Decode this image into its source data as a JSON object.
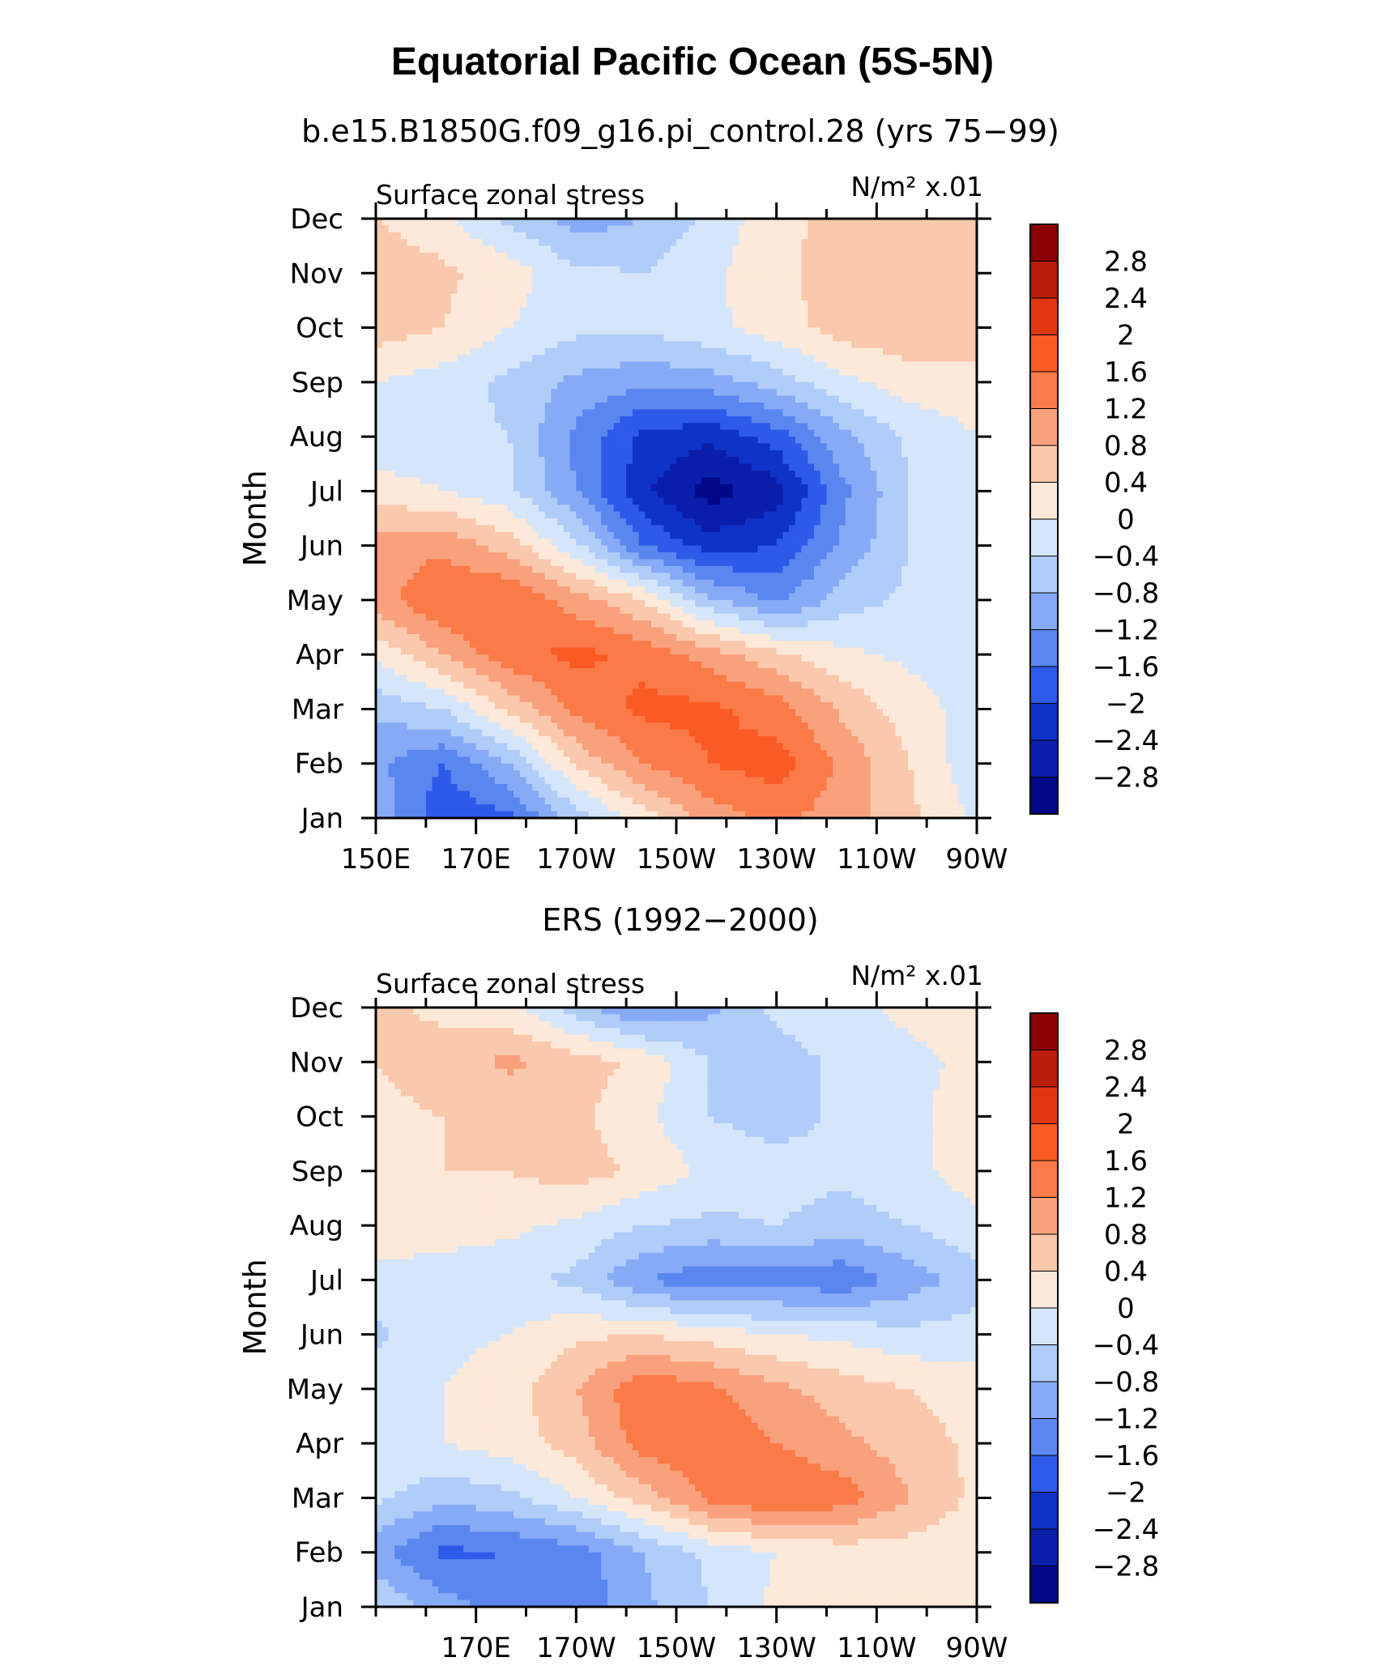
{
  "figure": {
    "title": "Equatorial Pacific Ocean (5S-5N)"
  },
  "chart_data": [
    {
      "type": "heatmap",
      "title": "b.e15.B1850G.f09_g16.pi_control.28 (yrs 75−99)",
      "left_string": "Surface zonal stress",
      "right_string": "N/m² x.01",
      "xlabel": "",
      "ylabel": "Month",
      "x_tick_labels": [
        "150E",
        "170E",
        "170W",
        "150W",
        "130W",
        "110W",
        "90W"
      ],
      "x_tick_lons": [
        150,
        170,
        190,
        210,
        230,
        250,
        270
      ],
      "xlim": [
        150,
        270
      ],
      "y_tick_labels": [
        "Jan",
        "Feb",
        "Mar",
        "Apr",
        "May",
        "Jun",
        "Jul",
        "Aug",
        "Sep",
        "Oct",
        "Nov",
        "Dec"
      ],
      "ylim": [
        1,
        12
      ],
      "colorbar": {
        "levels": [
          "2.8",
          "2.4",
          "2",
          "1.6",
          "1.2",
          "0.8",
          "0.4",
          "0",
          "−0.4",
          "−0.8",
          "−1.2",
          "−1.6",
          "−2",
          "−2.4",
          "−2.8"
        ],
        "colors": [
          "#8b0000",
          "#b81e0b",
          "#e03610",
          "#fa5a24",
          "#fa7a48",
          "#f9a07c",
          "#fac8ac",
          "#fde9d9",
          "#d6e6fa",
          "#b0ccf8",
          "#86aaf5",
          "#5a86f0",
          "#2d5ae8",
          "#0f32c8",
          "#0a1eab",
          "#000888"
        ]
      },
      "field": [
        [
          -0.9,
          -1.9,
          -1.7,
          -0.6,
          0.2,
          1.0,
          1.3,
          1.0,
          0.5,
          -0.1
        ],
        [
          -1.1,
          -1.6,
          -0.8,
          0.5,
          1.2,
          1.6,
          1.8,
          1.1,
          0.4,
          -0.3
        ],
        [
          -0.7,
          -0.4,
          0.5,
          1.3,
          1.7,
          1.7,
          1.4,
          0.7,
          0.2,
          -0.2
        ],
        [
          0.1,
          0.8,
          1.5,
          1.7,
          1.5,
          1.0,
          0.5,
          0.1,
          -0.1,
          -0.2
        ],
        [
          1.0,
          1.6,
          1.6,
          1.0,
          0.4,
          -0.7,
          -1.3,
          -0.6,
          -0.3,
          -0.2
        ],
        [
          1.0,
          1.1,
          0.6,
          -0.3,
          -1.6,
          -2.2,
          -2.0,
          -1.1,
          -0.4,
          -0.2
        ],
        [
          0.2,
          0.0,
          -0.3,
          -1.2,
          -2.3,
          -3.0,
          -2.6,
          -1.3,
          -0.4,
          -0.1
        ],
        [
          -0.3,
          -0.3,
          -0.4,
          -1.3,
          -2.1,
          -2.3,
          -1.8,
          -0.9,
          -0.3,
          0.0
        ],
        [
          0.0,
          -0.2,
          -0.5,
          -0.9,
          -1.1,
          -1.0,
          -0.6,
          -0.1,
          0.2,
          0.2
        ],
        [
          0.6,
          0.4,
          0.0,
          -0.3,
          -0.3,
          -0.1,
          0.2,
          0.6,
          0.7,
          0.8
        ],
        [
          0.7,
          0.5,
          0.2,
          -0.3,
          -0.4,
          -0.1,
          0.3,
          0.6,
          0.6,
          0.5
        ],
        [
          0.4,
          0.1,
          -0.5,
          -1.0,
          -0.8,
          -0.3,
          0.3,
          0.5,
          0.5,
          0.4
        ]
      ]
    },
    {
      "type": "heatmap",
      "title": "ERS (1992−2000)",
      "left_string": "Surface zonal stress",
      "right_string": "N/m² x.01",
      "xlabel": "",
      "ylabel": "Month",
      "x_tick_labels": [
        "170E",
        "170W",
        "150W",
        "130W",
        "110W",
        "90W"
      ],
      "x_tick_lons": [
        170,
        190,
        210,
        230,
        250,
        270
      ],
      "xlim": [
        150,
        270
      ],
      "y_tick_labels": [
        "Jan",
        "Feb",
        "Mar",
        "Apr",
        "May",
        "Jun",
        "Jul",
        "Aug",
        "Sep",
        "Oct",
        "Nov",
        "Dec"
      ],
      "ylim": [
        1,
        12
      ],
      "colorbar": {
        "levels": [
          "2.8",
          "2.4",
          "2",
          "1.6",
          "1.2",
          "0.8",
          "0.4",
          "0",
          "−0.4",
          "−0.8",
          "−1.2",
          "−1.6",
          "−2",
          "−2.4",
          "−2.8"
        ],
        "colors": [
          "#8b0000",
          "#b81e0b",
          "#e03610",
          "#fa5a24",
          "#fa7a48",
          "#f9a07c",
          "#fac8ac",
          "#fde9d9",
          "#d6e6fa",
          "#b0ccf8",
          "#86aaf5",
          "#5a86f0",
          "#2d5ae8",
          "#0f32c8",
          "#0a1eab",
          "#000888"
        ]
      },
      "field": [
        [
          -0.4,
          -1.0,
          -1.4,
          -1.5,
          -0.9,
          -0.4,
          0.1,
          0.3,
          0.3,
          0.1
        ],
        [
          -1.1,
          -1.7,
          -1.6,
          -1.4,
          -0.8,
          -0.3,
          0.0,
          0.2,
          0.2,
          0.1
        ],
        [
          -0.3,
          -0.7,
          -0.5,
          0.0,
          0.6,
          1.3,
          1.6,
          1.4,
          0.8,
          0.3
        ],
        [
          -0.1,
          0.0,
          0.2,
          0.6,
          1.4,
          1.5,
          1.2,
          0.9,
          0.6,
          0.3
        ],
        [
          -0.2,
          0.0,
          0.2,
          0.8,
          1.5,
          1.3,
          0.9,
          0.6,
          0.4,
          0.2
        ],
        [
          -0.5,
          -0.1,
          0.0,
          0.3,
          0.4,
          0.2,
          0.0,
          -0.1,
          -0.3,
          -0.2
        ],
        [
          -0.1,
          -0.2,
          -0.3,
          -0.5,
          -1.2,
          -1.5,
          -1.4,
          -1.5,
          -1.0,
          -0.6
        ],
        [
          0.2,
          0.2,
          0.1,
          -0.1,
          -0.4,
          -0.5,
          -0.4,
          -0.6,
          -0.4,
          -0.1
        ],
        [
          0.3,
          0.4,
          0.4,
          0.6,
          0.3,
          -0.1,
          -0.2,
          -0.3,
          -0.1,
          0.2
        ],
        [
          0.3,
          0.4,
          0.4,
          0.5,
          0.1,
          -0.4,
          -0.6,
          -0.3,
          -0.1,
          0.2
        ],
        [
          0.4,
          0.6,
          0.9,
          0.6,
          0.3,
          -0.4,
          -0.6,
          -0.3,
          -0.1,
          0.1
        ],
        [
          0.5,
          0.3,
          0.1,
          -0.6,
          -1.3,
          -0.9,
          -0.3,
          -0.1,
          0.1,
          0.2
        ]
      ]
    }
  ]
}
